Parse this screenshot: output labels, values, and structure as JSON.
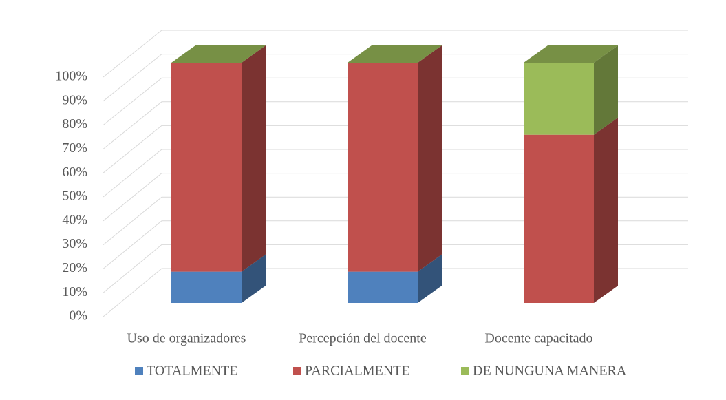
{
  "chart_data": {
    "type": "bar3d_stacked",
    "categories": [
      "Uso de organizadores",
      "Percepción del docente",
      "Docente capacitado"
    ],
    "series": [
      {
        "name": "TOTALMENTE",
        "color": "#4f81bd",
        "values": [
          13,
          13,
          0
        ]
      },
      {
        "name": "PARCIALMENTE",
        "color": "#c0504d",
        "values": [
          87,
          87,
          70
        ]
      },
      {
        "name": "DE NUNGUNA MANERA",
        "color": "#9bbb59",
        "values": [
          0,
          0,
          30
        ]
      }
    ],
    "ylim": [
      0,
      100
    ],
    "yticks": [
      {
        "value": 0,
        "label": "0%"
      },
      {
        "value": 10,
        "label": "10%"
      },
      {
        "value": 20,
        "label": "20%"
      },
      {
        "value": 30,
        "label": "30%"
      },
      {
        "value": 40,
        "label": "40%"
      },
      {
        "value": 50,
        "label": "50%"
      },
      {
        "value": 60,
        "label": "60%"
      },
      {
        "value": 70,
        "label": "70%"
      },
      {
        "value": 80,
        "label": "80%"
      },
      {
        "value": 90,
        "label": "90%"
      },
      {
        "value": 100,
        "label": "100%"
      }
    ],
    "grid": true,
    "legend": "bottom"
  }
}
